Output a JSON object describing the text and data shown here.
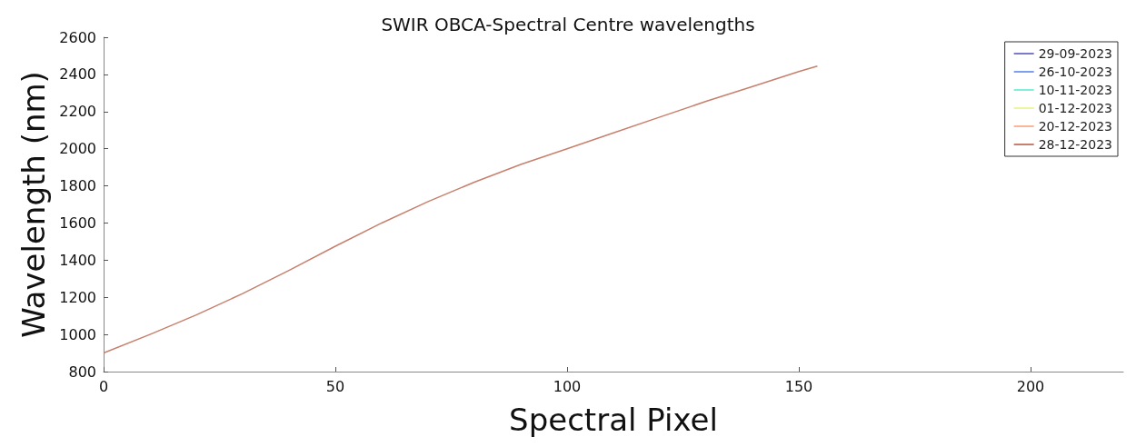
{
  "chart_data": {
    "type": "line",
    "title": "SWIR OBCA-Spectral Centre wavelengths",
    "xlabel": "Spectral Pixel",
    "ylabel": "Wavelength (nm)",
    "x": [
      0,
      10,
      20,
      30,
      40,
      50,
      60,
      70,
      80,
      90,
      100,
      110,
      120,
      130,
      140,
      150,
      154
    ],
    "series": [
      {
        "name": "29-09-2023",
        "color": "#7b7bc8",
        "values": [
          null,
          null,
          null,
          null,
          null,
          null,
          null,
          null,
          null,
          null,
          null,
          null,
          null,
          null,
          null,
          null,
          null
        ]
      },
      {
        "name": "26-10-2023",
        "color": "#7fa0f0",
        "values": [
          null,
          null,
          null,
          null,
          null,
          null,
          null,
          null,
          null,
          null,
          null,
          null,
          null,
          null,
          null,
          null,
          null
        ]
      },
      {
        "name": "10-11-2023",
        "color": "#80f0d8",
        "values": [
          null,
          null,
          null,
          null,
          null,
          null,
          null,
          null,
          null,
          null,
          null,
          null,
          null,
          null,
          null,
          null,
          null
        ]
      },
      {
        "name": "01-12-2023",
        "color": "#eef5a0",
        "values": [
          null,
          null,
          null,
          null,
          null,
          null,
          null,
          null,
          null,
          null,
          null,
          null,
          null,
          null,
          null,
          null,
          null
        ]
      },
      {
        "name": "20-12-2023",
        "color": "#f8b898",
        "values": [
          null,
          null,
          null,
          null,
          null,
          null,
          null,
          null,
          null,
          null,
          null,
          null,
          null,
          null,
          null,
          null,
          null
        ]
      },
      {
        "name": "28-12-2023",
        "color": "#c8806e",
        "values": [
          900,
          1000,
          1105,
          1220,
          1345,
          1475,
          1600,
          1715,
          1820,
          1915,
          2000,
          2085,
          2170,
          2255,
          2335,
          2415,
          2445
        ]
      }
    ],
    "xlim": [
      0,
      220
    ],
    "xticks": [
      0,
      50,
      100,
      150,
      200
    ],
    "ylim": [
      800,
      2600
    ],
    "yticks": [
      800,
      1000,
      1200,
      1400,
      1600,
      1800,
      2000,
      2200,
      2400,
      2600
    ],
    "grid": false,
    "legend": "top right"
  }
}
